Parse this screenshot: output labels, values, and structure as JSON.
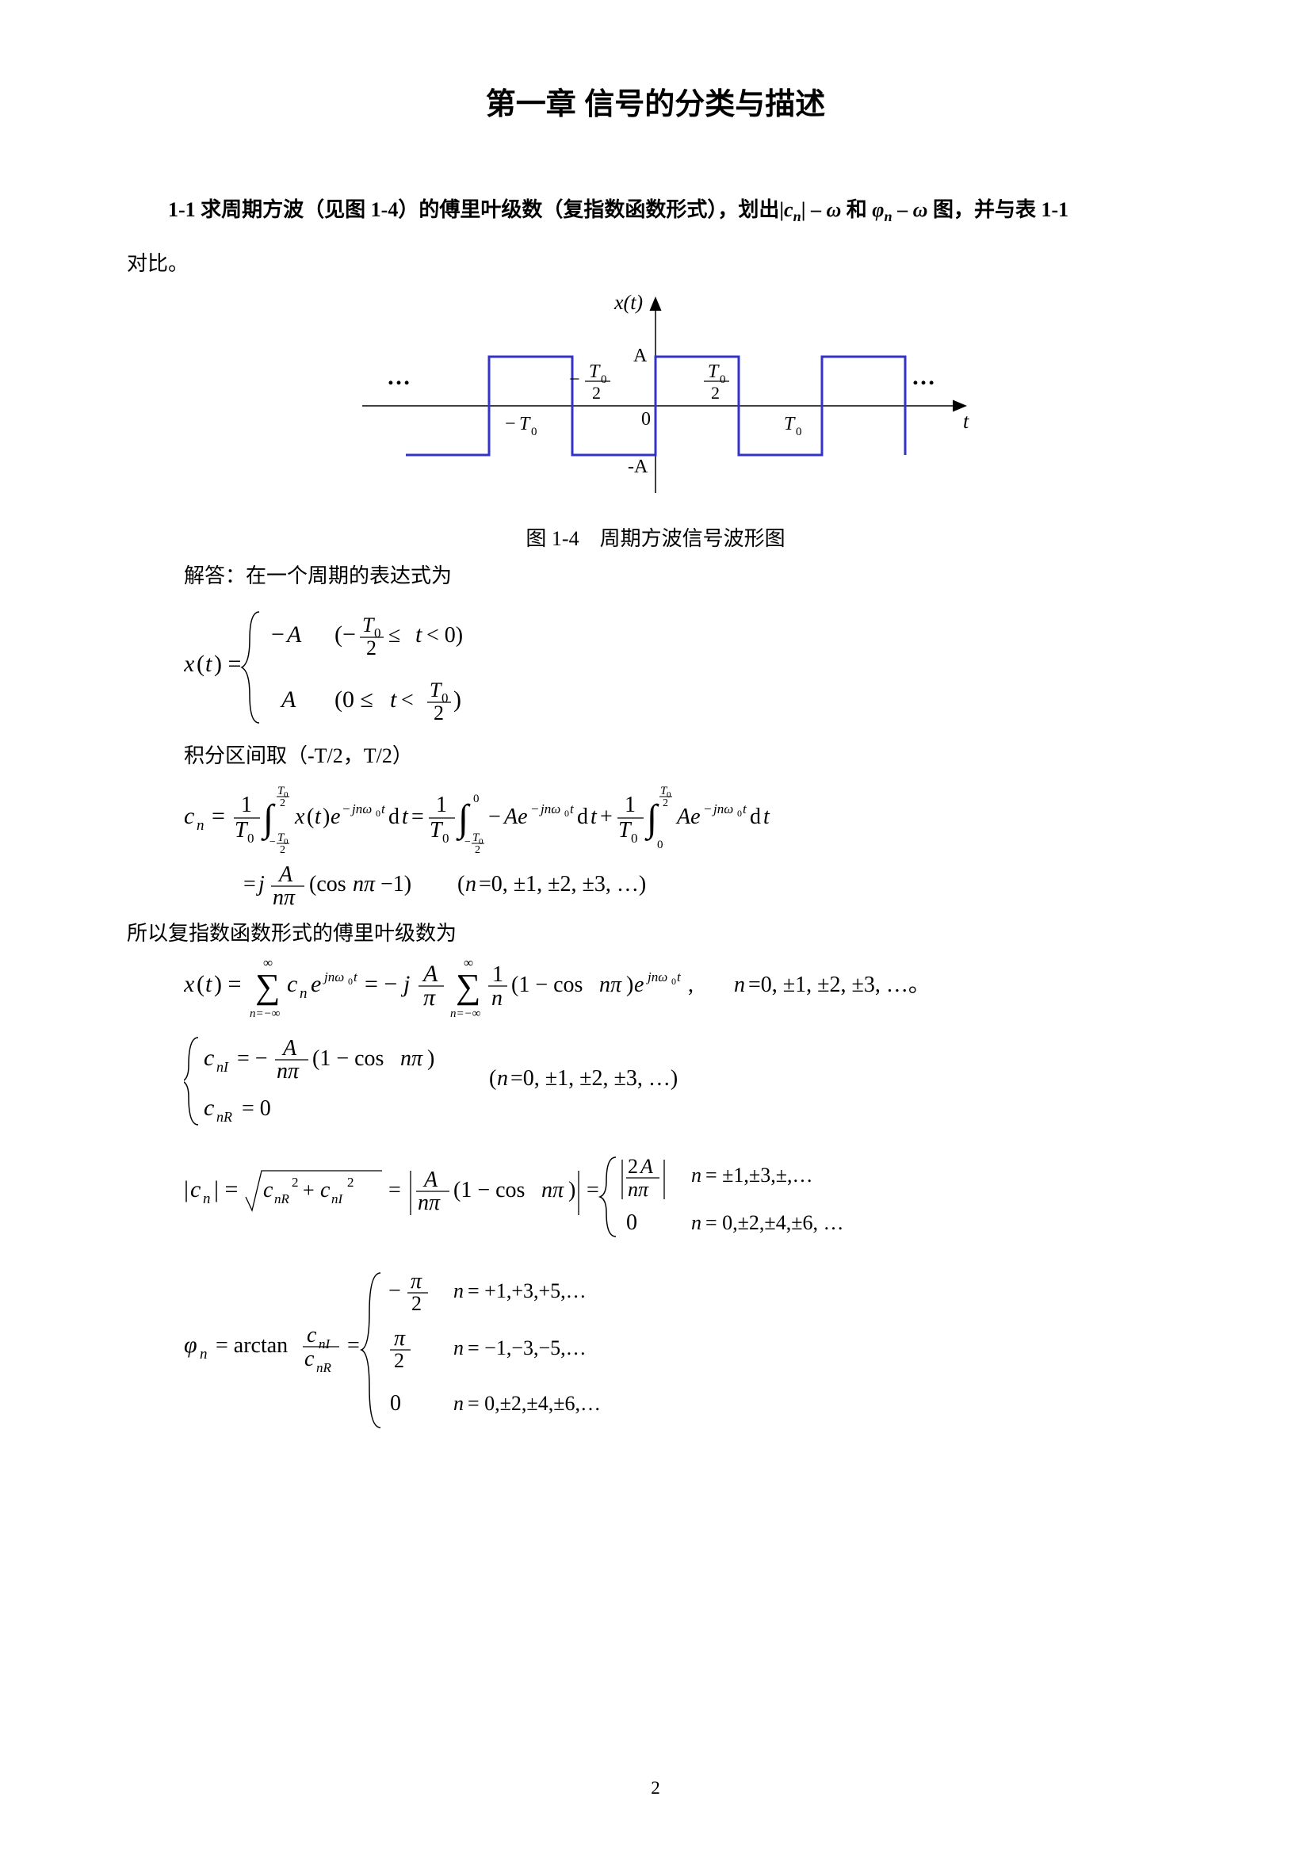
{
  "chapter_title": "第一章 信号的分类与描述",
  "problem": {
    "prefix": "1-1 求周期方波（见图 1-4）的傅里叶级数（复指数函数形式），划出|",
    "cn": "c",
    "cn_sub": "n",
    "mid1": "| – ",
    "omega": "ω",
    "mid2": " 和 ",
    "phi": "φ",
    "phi_sub": "n",
    "mid3": " – ",
    "suffix": " 图，并与表 1-1"
  },
  "problem_line2": "对比。",
  "figure": {
    "caption": "图 1-4　周期方波信号波形图",
    "xt": "x(t)",
    "A_label": "A",
    "negA_label": "-A",
    "T0": "T",
    "t_label": "t",
    "zero": "0",
    "dots": "…",
    "stroke_color": "#3333cc",
    "stroke_width": 3,
    "axis_color": "#000000"
  },
  "solution_intro": "解答：在一个周期的表达式为",
  "integral_label": "积分区间取（-T/2，T/2）",
  "conclusion_line": "所以复指数函数形式的傅里叶级数为",
  "page_number": "2",
  "eq1": {
    "lhs": "x(t) =",
    "case1_val": "−A",
    "case1_cond_open": "(−",
    "case1_cond_close": " ≤ t < 0)",
    "case2_val": "A",
    "case2_cond_open": "(0 ≤ t < ",
    "case2_cond_close": ")",
    "T0": "T",
    "zero": "0",
    "two": "2"
  },
  "eq2": {
    "text_parts": [
      "c",
      "n",
      " = ",
      "1",
      "T",
      "0",
      "x(t)e",
      "−jnω",
      "0",
      "t",
      " dt",
      "= ",
      "−Ae",
      "Ae",
      "+"
    ],
    "limits_low": "−",
    "result_line2_a": "= j",
    "result_line2_b": "A",
    "result_line2_c": "nπ",
    "result_line2_d": "(cosnπ−1)",
    "n_range": "(n=0, ±1, ±2, ±3, …)"
  },
  "eq3": {
    "lhs": "x(t) = ",
    "sum": "∑",
    "n_low": "n=−∞",
    "n_high": "∞",
    "cn": "c",
    "exp": "e",
    "jnw": "jnω",
    "zero": "0",
    "t": "t",
    "eq": " = −j",
    "A": "A",
    "pi": "π",
    "frac1n": "1",
    "n": "n",
    "paren": "(1 − cos nπ)e",
    "comma": " ,　",
    "range": "n=0, ±1, ±2, ±3, …。"
  },
  "eq4": {
    "cnI": "c",
    "nI": "nI",
    "eq1": " = −",
    "A": "A",
    "npi": "nπ",
    "paren": "(1 − cos nπ)",
    "cnR": "c",
    "nR": "nR",
    "eq0": " = 0",
    "range": "(n=0, ±1, ±2, ±3, …)"
  },
  "eq5": {
    "lhs": "|c",
    "n": "n",
    "bar": "| = ",
    "sqrt": "√",
    "cnR": "c",
    "nR": "nR",
    "plus": " + ",
    "cnI": "c",
    "nI": "nI",
    "sq": "2",
    "eq2": " = ",
    "A": "A",
    "npi": "nπ",
    "paren": "(1 − cos nπ)",
    "eq3": " = ",
    "twoA": "2A",
    "case1_cond": "n = ±1,±3,±,…",
    "zero": "0",
    "case2_cond": "n = 0,±2,±4,±6, …"
  },
  "eq6": {
    "phi": "φ",
    "n": "n",
    "eq": " = arctan",
    "cnI": "c",
    "nI": "nI",
    "cnR": "c",
    "nR": "nR",
    "eq2": " = ",
    "neg_pi2": "−",
    "pi": "π",
    "two": "2",
    "case1_cond": "n = +1,+3,+5,…",
    "pos_pi2": "",
    "case2_cond": "n = −1,−3,−5,…",
    "zero": "0",
    "case3_cond": "n = 0,±2,±4,±6,…"
  }
}
